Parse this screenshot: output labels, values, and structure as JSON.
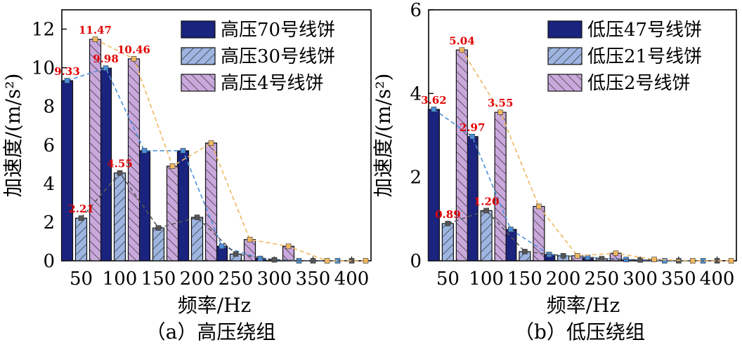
{
  "chart_data": [
    {
      "type": "bar",
      "caption": "（a）高压绕组",
      "xlabel": "频率/Hz",
      "ylabel": "加速度/(m/s²)",
      "categories": [
        "50",
        "100",
        "150",
        "200",
        "250",
        "300",
        "350",
        "400"
      ],
      "ylim": [
        0,
        13
      ],
      "yticks": [
        0,
        2,
        4,
        6,
        8,
        10,
        12
      ],
      "legend_position": "top-right",
      "series": [
        {
          "name": "高压70号线饼",
          "pattern": "solid",
          "color": "#1a237e",
          "line_color": "#4a90d9",
          "values": [
            9.33,
            9.98,
            5.7,
            5.7,
            0.75,
            0.12,
            0.0,
            0.0
          ]
        },
        {
          "name": "高压30号线饼",
          "pattern": "hatch-right",
          "color": "#9db5e0",
          "line_color": "#555555",
          "values": [
            2.21,
            4.55,
            1.7,
            2.25,
            0.35,
            0.05,
            0.0,
            0.0
          ]
        },
        {
          "name": "高压4号线饼",
          "pattern": "hatch-left",
          "color": "#c9a8dc",
          "line_color": "#f0b860",
          "values": [
            11.47,
            10.46,
            4.9,
            6.1,
            1.1,
            0.75,
            0.0,
            0.0
          ]
        }
      ],
      "annotations": [
        {
          "text": "9.33",
          "series": 0,
          "index": 0
        },
        {
          "text": "2.21",
          "series": 1,
          "index": 0
        },
        {
          "text": "11.47",
          "series": 2,
          "index": 0
        },
        {
          "text": "9.98",
          "series": 0,
          "index": 1
        },
        {
          "text": "4.55",
          "series": 1,
          "index": 1
        },
        {
          "text": "10.46",
          "series": 2,
          "index": 1
        }
      ]
    },
    {
      "type": "bar",
      "caption": "（b）低压绕组",
      "xlabel": "频率/Hz",
      "ylabel": "加速度/(m/s²)",
      "categories": [
        "50",
        "100",
        "150",
        "200",
        "250",
        "300",
        "350",
        "400"
      ],
      "ylim": [
        0,
        6
      ],
      "yticks": [
        0,
        2,
        4,
        6
      ],
      "legend_position": "top-right",
      "series": [
        {
          "name": "低压47号线饼",
          "pattern": "solid",
          "color": "#1a237e",
          "line_color": "#4a90d9",
          "values": [
            3.62,
            2.97,
            0.75,
            0.15,
            0.08,
            0.03,
            0.0,
            0.0
          ]
        },
        {
          "name": "低压21号线饼",
          "pattern": "hatch-right",
          "color": "#9db5e0",
          "line_color": "#555555",
          "values": [
            0.89,
            1.2,
            0.22,
            0.12,
            0.05,
            0.02,
            0.0,
            0.0
          ]
        },
        {
          "name": "低压2号线饼",
          "pattern": "hatch-left",
          "color": "#c9a8dc",
          "line_color": "#f0b860",
          "values": [
            5.04,
            3.55,
            1.3,
            0.12,
            0.18,
            0.03,
            0.0,
            0.0
          ]
        }
      ],
      "annotations": [
        {
          "text": "3.62",
          "series": 0,
          "index": 0
        },
        {
          "text": "0.89",
          "series": 1,
          "index": 0
        },
        {
          "text": "5.04",
          "series": 2,
          "index": 0
        },
        {
          "text": "2.97",
          "series": 0,
          "index": 1
        },
        {
          "text": "1.20",
          "series": 1,
          "index": 1
        },
        {
          "text": "3.55",
          "series": 2,
          "index": 1
        }
      ]
    }
  ]
}
